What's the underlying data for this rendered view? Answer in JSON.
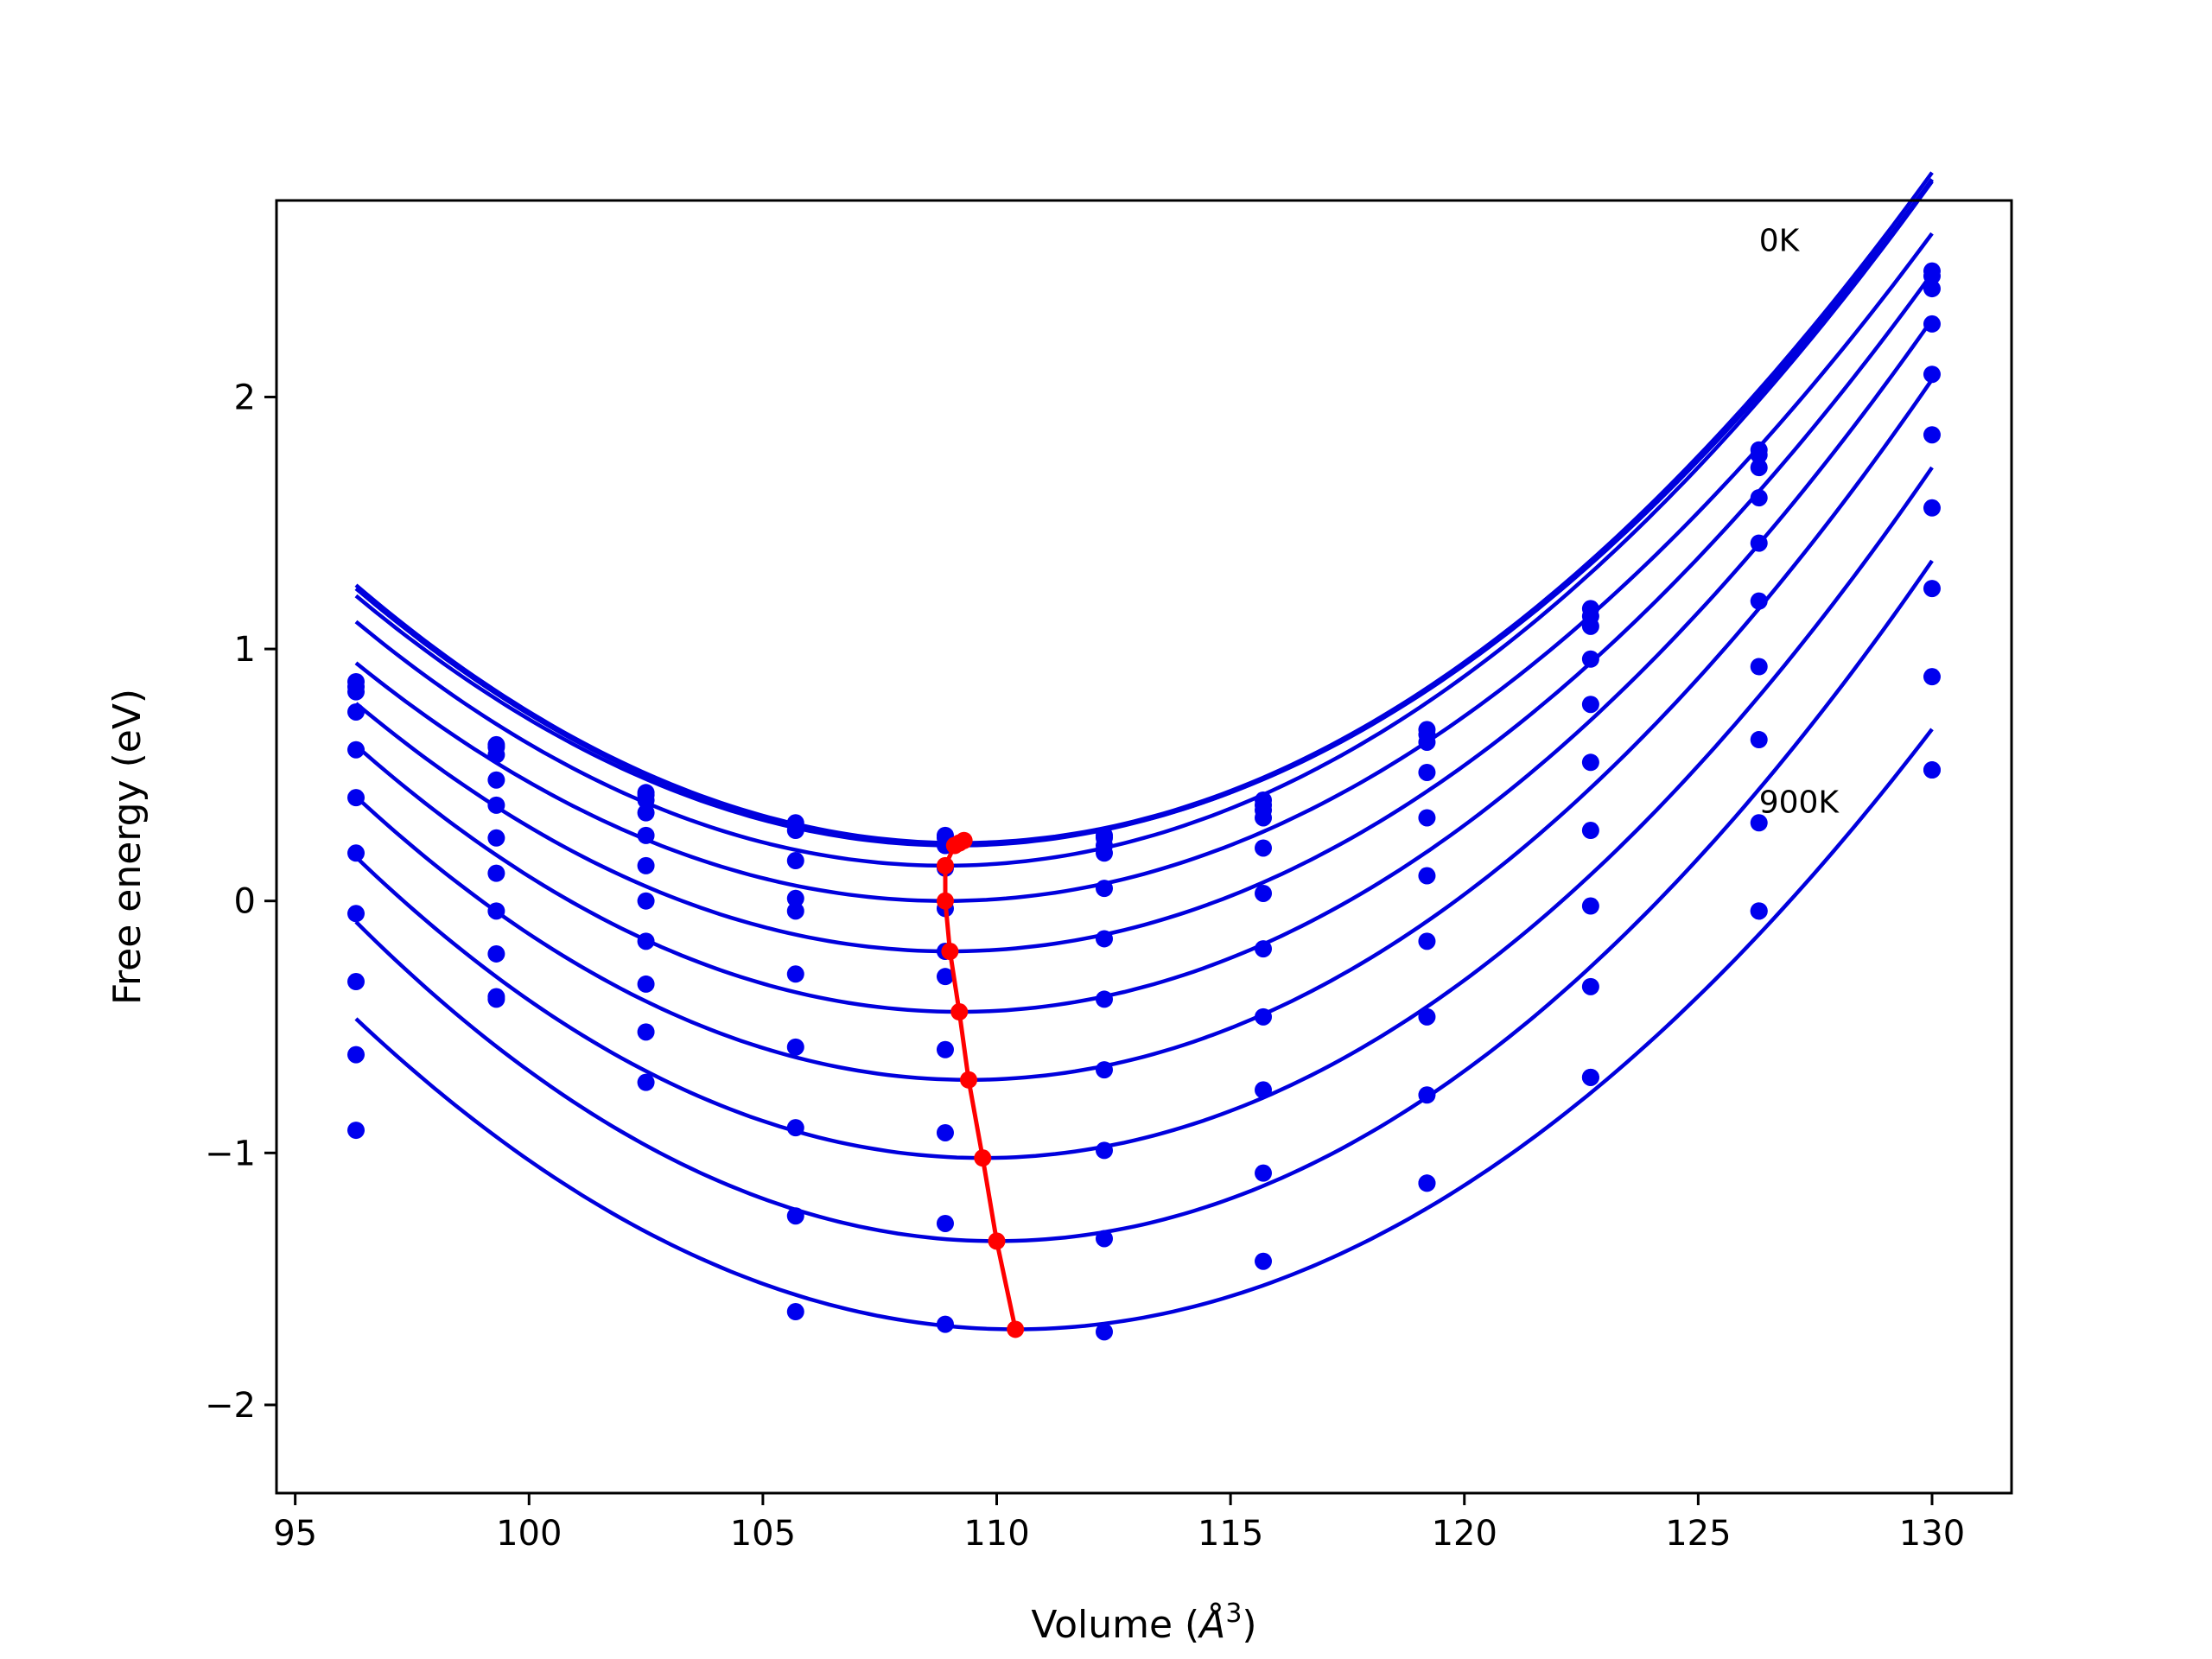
{
  "chart_data": {
    "type": "scatter",
    "xlabel_prefix": "Volume (",
    "xlabel_symbol": "Å",
    "xlabel_exp": "3",
    "xlabel_suffix": ")",
    "ylabel": "Free energy (eV)",
    "xlim": [
      94.6,
      131.7
    ],
    "ylim": [
      -2.35,
      2.78
    ],
    "xticks": [
      95,
      100,
      105,
      110,
      115,
      120,
      125,
      130
    ],
    "yticks": [
      -2,
      -1,
      0,
      1,
      2
    ],
    "x": [
      96.3,
      99.3,
      102.5,
      105.7,
      108.9,
      112.3,
      115.7,
      119.2,
      122.7,
      126.3,
      130.0
    ],
    "series": [
      {
        "values": [
          0.87,
          0.62,
          0.43,
          0.31,
          0.26,
          0.26,
          0.4,
          0.68,
          1.16,
          1.79,
          2.5
        ]
      },
      {
        "values": [
          0.85,
          0.61,
          0.42,
          0.3,
          0.25,
          0.25,
          0.38,
          0.66,
          1.13,
          1.77,
          2.48
        ]
      },
      {
        "values": [
          0.83,
          0.58,
          0.4,
          0.28,
          0.22,
          0.22,
          0.36,
          0.63,
          1.09,
          1.72,
          2.43
        ]
      },
      {
        "values": [
          0.75,
          0.48,
          0.35,
          0.16,
          0.13,
          0.19,
          0.33,
          0.51,
          0.96,
          1.6,
          2.29
        ]
      },
      {
        "values": [
          0.6,
          0.38,
          0.26,
          0.01,
          -0.03,
          0.05,
          0.21,
          0.33,
          0.78,
          1.42,
          2.09
        ]
      },
      {
        "values": [
          0.41,
          0.25,
          0.14,
          -0.04,
          -0.2,
          -0.15,
          0.03,
          0.1,
          0.55,
          1.19,
          1.85
        ]
      },
      {
        "values": [
          0.19,
          0.11,
          0.0,
          -0.29,
          -0.3,
          -0.39,
          -0.19,
          -0.16,
          0.28,
          0.93,
          1.56
        ]
      },
      {
        "values": [
          -0.05,
          -0.04,
          -0.16,
          -0.58,
          -0.59,
          -0.67,
          -0.46,
          -0.46,
          -0.02,
          0.64,
          1.24
        ]
      },
      {
        "values": [
          -0.32,
          -0.21,
          -0.33,
          -0.9,
          -0.92,
          -0.99,
          -0.75,
          -0.77,
          -0.34,
          0.31,
          0.89
        ]
      },
      {
        "values": [
          -0.61,
          -0.39,
          -0.52,
          -1.25,
          -1.28,
          -1.34,
          -1.08,
          -1.12,
          -0.7,
          -0.04,
          0.52
        ]
      },
      {
        "values": [
          -0.91,
          -0.38,
          -0.72,
          -1.63,
          -1.68,
          -1.71,
          -1.43,
          -1.12,
          -0.7,
          -0.04,
          0.52
        ]
      }
    ],
    "fits": [
      {
        "v0": 109.2,
        "e0": 0.23,
        "c": 0.00615
      },
      {
        "v0": 109.2,
        "e0": 0.225,
        "c": 0.0061
      },
      {
        "v0": 109.1,
        "e0": 0.22,
        "c": 0.00605
      },
      {
        "v0": 108.9,
        "e0": 0.14,
        "c": 0.0061
      },
      {
        "v0": 108.9,
        "e0": 0.0,
        "c": 0.00595
      },
      {
        "v0": 109.0,
        "e0": -0.2,
        "c": 0.0061
      },
      {
        "v0": 109.2,
        "e0": -0.44,
        "c": 0.00635
      },
      {
        "v0": 109.4,
        "e0": -0.71,
        "c": 0.00655
      },
      {
        "v0": 109.7,
        "e0": -1.02,
        "c": 0.00665
      },
      {
        "v0": 110.0,
        "e0": -1.35,
        "c": 0.00675
      },
      {
        "v0": 110.4,
        "e0": -1.7,
        "c": 0.0062
      }
    ],
    "minima": {
      "x": [
        109.3,
        109.2,
        109.1,
        108.9,
        108.9,
        109.0,
        109.2,
        109.4,
        109.7,
        110.0,
        110.4
      ],
      "y": [
        0.24,
        0.23,
        0.22,
        0.14,
        0.0,
        -0.2,
        -0.44,
        -0.71,
        -1.02,
        -1.35,
        -1.7
      ]
    },
    "annotations": [
      {
        "text": "0K",
        "x": 126.3,
        "y": 2.58
      },
      {
        "text": "900K",
        "x": 126.3,
        "y": 0.35
      }
    ],
    "colors": {
      "points": "#0000ee",
      "fits": "#0000dd",
      "minima": "#ff0000"
    }
  }
}
